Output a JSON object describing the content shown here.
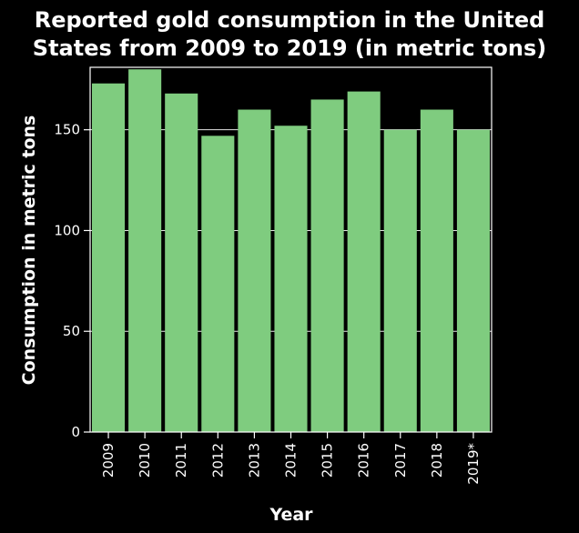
{
  "chart_data": {
    "type": "bar",
    "title_lines": [
      "Reported gold consumption in the United",
      "States from 2009 to 2019 (in metric tons)"
    ],
    "xlabel": "Year",
    "ylabel": "Consumption in metric tons",
    "categories": [
      "2009",
      "2010",
      "2011",
      "2012",
      "2013",
      "2014",
      "2015",
      "2016",
      "2017",
      "2018",
      "2019*"
    ],
    "values": [
      173,
      180,
      168,
      147,
      160,
      152,
      165,
      169,
      150,
      160,
      150
    ],
    "yticks": [
      0,
      50,
      100,
      150
    ],
    "ylim": [
      0,
      181
    ],
    "grid": true,
    "colors": {
      "bar": "#7fcc7f",
      "background": "#000000",
      "text": "#ffffff",
      "grid": "#ffffff"
    }
  }
}
